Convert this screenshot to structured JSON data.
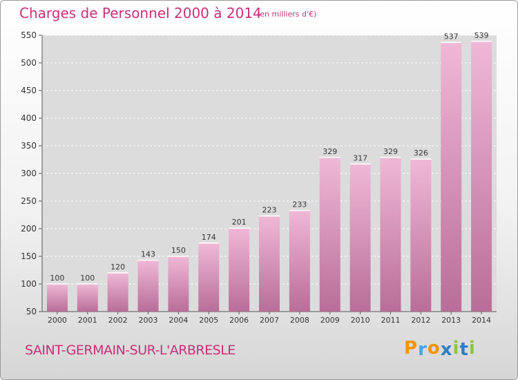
{
  "title": "Charges de Personnel 2000 à 2014",
  "subtitle": "(en milliers d'€)",
  "commune": "SAINT-GERMAIN-SUR-L'ARBRESLE",
  "logo": {
    "letters": [
      "P",
      "r",
      "o",
      "x",
      "i",
      "t",
      "i"
    ],
    "colors": [
      "#f29400",
      "#4aa3df",
      "#f29400",
      "#2e7fc1",
      "#8cc63f",
      "#2e7fc1",
      "#8cc63f"
    ]
  },
  "colors": {
    "bar_light": "#f0b8d6",
    "bar_dark": "#b86e98",
    "text": "#c8307a",
    "plot_bg": "#dcdcdc",
    "grid": "#ffffff"
  },
  "chart_data": {
    "type": "bar",
    "categories": [
      "2000",
      "2001",
      "2002",
      "2003",
      "2004",
      "2005",
      "2006",
      "2007",
      "2008",
      "2009",
      "2010",
      "2011",
      "2012",
      "2013",
      "2014"
    ],
    "values": [
      100,
      100,
      120,
      143,
      150,
      174,
      201,
      223,
      233,
      329,
      317,
      329,
      326,
      537,
      539
    ],
    "ylim": [
      50,
      550
    ],
    "yticks": [
      50,
      100,
      150,
      200,
      250,
      300,
      350,
      400,
      450,
      500,
      550
    ],
    "grid": true,
    "title": "Charges de Personnel 2000 à 2014",
    "xlabel": "",
    "ylabel": ""
  }
}
